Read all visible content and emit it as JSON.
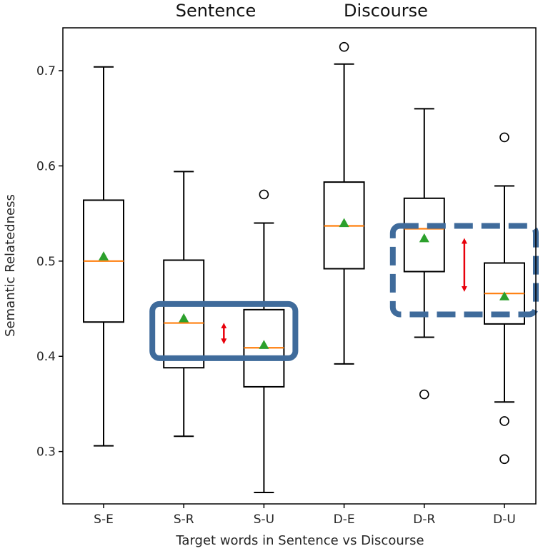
{
  "chart_data": {
    "type": "box",
    "xlabel": "Target words in Sentence vs Discourse",
    "ylabel": "Semantic Relatedness",
    "ylim": [
      0.245,
      0.745
    ],
    "yticks": [
      0.3,
      0.4,
      0.5,
      0.6,
      0.7
    ],
    "ytick_labels": [
      "0.3",
      "0.4",
      "0.5",
      "0.6",
      "0.7"
    ],
    "group_labels": [
      "Sentence",
      "Discourse"
    ],
    "categories": [
      "S-E",
      "S-R",
      "S-U",
      "D-E",
      "D-R",
      "D-U"
    ],
    "boxes": [
      {
        "label": "S-E",
        "whisker_low": 0.306,
        "q1": 0.436,
        "median": 0.5,
        "q3": 0.564,
        "whisker_high": 0.704,
        "mean": 0.505,
        "outliers": []
      },
      {
        "label": "S-R",
        "whisker_low": 0.316,
        "q1": 0.388,
        "median": 0.435,
        "q3": 0.501,
        "whisker_high": 0.594,
        "mean": 0.44,
        "outliers": []
      },
      {
        "label": "S-U",
        "whisker_low": 0.257,
        "q1": 0.368,
        "median": 0.409,
        "q3": 0.449,
        "whisker_high": 0.54,
        "mean": 0.412,
        "outliers": [
          0.57
        ]
      },
      {
        "label": "D-E",
        "whisker_low": 0.392,
        "q1": 0.492,
        "median": 0.537,
        "q3": 0.583,
        "whisker_high": 0.707,
        "mean": 0.54,
        "outliers": [
          0.725
        ]
      },
      {
        "label": "D-R",
        "whisker_low": 0.42,
        "q1": 0.489,
        "median": 0.534,
        "q3": 0.566,
        "whisker_high": 0.66,
        "mean": 0.524,
        "outliers": [
          0.36
        ]
      },
      {
        "label": "D-U",
        "whisker_low": 0.352,
        "q1": 0.434,
        "median": 0.466,
        "q3": 0.498,
        "whisker_high": 0.579,
        "mean": 0.463,
        "outliers": [
          0.63,
          0.332,
          0.292
        ]
      }
    ],
    "annotations": [
      {
        "type": "highlight-box",
        "style": "solid",
        "color": "#3f6b9b",
        "spans": [
          "S-R",
          "S-U"
        ],
        "y_range": [
          0.398,
          0.455
        ]
      },
      {
        "type": "highlight-box",
        "style": "dashed",
        "color": "#3f6b9b",
        "spans": [
          "D-R",
          "D-U"
        ],
        "y_range": [
          0.444,
          0.537
        ]
      },
      {
        "type": "double-arrow",
        "color": "#e8000b",
        "between": [
          "S-R",
          "S-U"
        ],
        "y_range": [
          0.412,
          0.436
        ]
      },
      {
        "type": "double-arrow",
        "color": "#e8000b",
        "between": [
          "D-R",
          "D-U"
        ],
        "y_range": [
          0.467,
          0.525
        ]
      }
    ],
    "colors": {
      "box": "#000000",
      "median": "#ff7f0e",
      "mean": "#2ca02c",
      "outlier": "#000000",
      "highlight": "#3f6b9b",
      "arrow": "#e8000b"
    },
    "grid": false,
    "legend": "none"
  }
}
